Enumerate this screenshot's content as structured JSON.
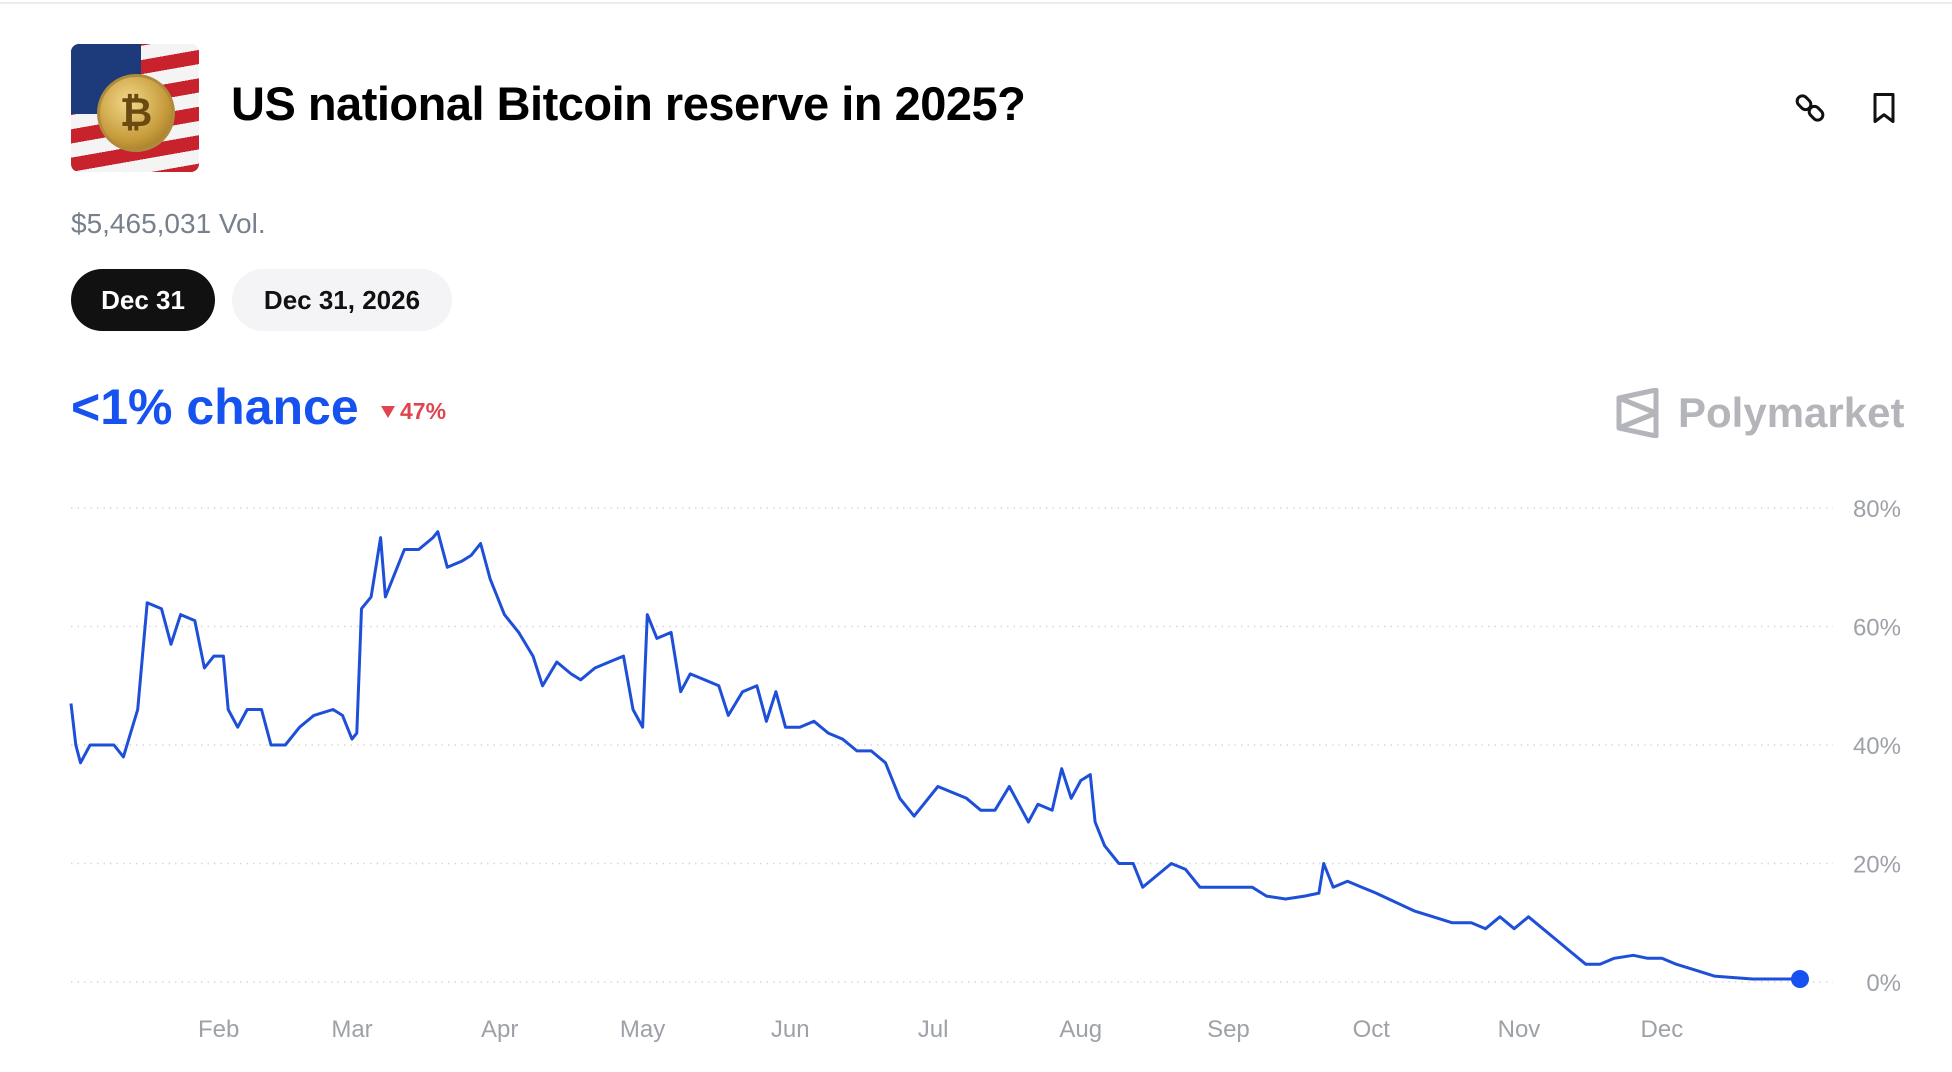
{
  "market": {
    "title": "US national Bitcoin reserve in 2025?",
    "volume": "$5,465,031 Vol.",
    "thumbnail_symbol": "₿",
    "date_tabs": [
      {
        "label": "Dec 31",
        "active": true
      },
      {
        "label": "Dec 31, 2026",
        "active": false
      }
    ],
    "chance": "<1% chance",
    "change": "47%",
    "change_direction": "down",
    "brand": "Polymarket",
    "icons": [
      "link-icon",
      "bookmark-icon"
    ]
  },
  "colors": {
    "accent": "#1652f0",
    "line": "#1d4fd8",
    "down": "#e0454f",
    "muted": "#9ea1a8"
  },
  "chart_data": {
    "type": "line",
    "ylim": [
      0,
      80
    ],
    "y_ticks": [
      "0%",
      "20%",
      "40%",
      "60%",
      "80%"
    ],
    "y_tick_values": [
      0,
      20,
      40,
      60,
      80
    ],
    "x_ticks": [
      "Feb",
      "Mar",
      "Apr",
      "May",
      "Jun",
      "Jul",
      "Aug",
      "Sep",
      "Oct",
      "Nov",
      "Dec"
    ],
    "x_tick_dates": [
      "2025-02-01",
      "2025-03-01",
      "2025-04-01",
      "2025-05-01",
      "2025-06-01",
      "2025-07-01",
      "2025-08-01",
      "2025-09-01",
      "2025-10-01",
      "2025-11-01",
      "2025-12-01"
    ],
    "grid": "horizontal dotted",
    "y_axis_side": "right",
    "series": [
      {
        "points": [
          [
            "2025-01-01",
            47
          ],
          [
            "2025-01-02",
            40
          ],
          [
            "2025-01-03",
            37
          ],
          [
            "2025-01-05",
            40
          ],
          [
            "2025-01-10",
            40
          ],
          [
            "2025-01-12",
            38
          ],
          [
            "2025-01-15",
            46
          ],
          [
            "2025-01-17",
            64
          ],
          [
            "2025-01-20",
            63
          ],
          [
            "2025-01-22",
            57
          ],
          [
            "2025-01-24",
            62
          ],
          [
            "2025-01-27",
            61
          ],
          [
            "2025-01-29",
            53
          ],
          [
            "2025-01-31",
            55
          ],
          [
            "2025-02-02",
            55
          ],
          [
            "2025-02-03",
            46
          ],
          [
            "2025-02-05",
            43
          ],
          [
            "2025-02-07",
            46
          ],
          [
            "2025-02-10",
            46
          ],
          [
            "2025-02-12",
            40
          ],
          [
            "2025-02-15",
            40
          ],
          [
            "2025-02-18",
            43
          ],
          [
            "2025-02-21",
            45
          ],
          [
            "2025-02-25",
            46
          ],
          [
            "2025-02-27",
            45
          ],
          [
            "2025-03-01",
            41
          ],
          [
            "2025-03-02",
            42
          ],
          [
            "2025-03-03",
            63
          ],
          [
            "2025-03-05",
            65
          ],
          [
            "2025-03-07",
            75
          ],
          [
            "2025-03-08",
            65
          ],
          [
            "2025-03-10",
            69
          ],
          [
            "2025-03-12",
            73
          ],
          [
            "2025-03-15",
            73
          ],
          [
            "2025-03-18",
            75
          ],
          [
            "2025-03-19",
            76
          ],
          [
            "2025-03-21",
            70
          ],
          [
            "2025-03-24",
            71
          ],
          [
            "2025-03-26",
            72
          ],
          [
            "2025-03-28",
            74
          ],
          [
            "2025-03-30",
            68
          ],
          [
            "2025-04-02",
            62
          ],
          [
            "2025-04-05",
            59
          ],
          [
            "2025-04-08",
            55
          ],
          [
            "2025-04-10",
            50
          ],
          [
            "2025-04-13",
            54
          ],
          [
            "2025-04-16",
            52
          ],
          [
            "2025-04-18",
            51
          ],
          [
            "2025-04-21",
            53
          ],
          [
            "2025-04-24",
            54
          ],
          [
            "2025-04-27",
            55
          ],
          [
            "2025-04-29",
            46
          ],
          [
            "2025-05-01",
            43
          ],
          [
            "2025-05-02",
            62
          ],
          [
            "2025-05-04",
            58
          ],
          [
            "2025-05-07",
            59
          ],
          [
            "2025-05-09",
            49
          ],
          [
            "2025-05-11",
            52
          ],
          [
            "2025-05-14",
            51
          ],
          [
            "2025-05-17",
            50
          ],
          [
            "2025-05-19",
            45
          ],
          [
            "2025-05-22",
            49
          ],
          [
            "2025-05-25",
            50
          ],
          [
            "2025-05-27",
            44
          ],
          [
            "2025-05-29",
            49
          ],
          [
            "2025-05-31",
            43
          ],
          [
            "2025-06-03",
            43
          ],
          [
            "2025-06-06",
            44
          ],
          [
            "2025-06-09",
            42
          ],
          [
            "2025-06-12",
            41
          ],
          [
            "2025-06-15",
            39
          ],
          [
            "2025-06-18",
            39
          ],
          [
            "2025-06-21",
            37
          ],
          [
            "2025-06-24",
            31
          ],
          [
            "2025-06-27",
            28
          ],
          [
            "2025-06-29",
            30
          ],
          [
            "2025-07-02",
            33
          ],
          [
            "2025-07-05",
            32
          ],
          [
            "2025-07-08",
            31
          ],
          [
            "2025-07-11",
            29
          ],
          [
            "2025-07-14",
            29
          ],
          [
            "2025-07-17",
            33
          ],
          [
            "2025-07-19",
            30
          ],
          [
            "2025-07-21",
            27
          ],
          [
            "2025-07-23",
            30
          ],
          [
            "2025-07-26",
            29
          ],
          [
            "2025-07-28",
            36
          ],
          [
            "2025-07-30",
            31
          ],
          [
            "2025-08-01",
            34
          ],
          [
            "2025-08-03",
            35
          ],
          [
            "2025-08-04",
            27
          ],
          [
            "2025-08-06",
            23
          ],
          [
            "2025-08-09",
            20
          ],
          [
            "2025-08-12",
            20
          ],
          [
            "2025-08-14",
            16
          ],
          [
            "2025-08-17",
            18
          ],
          [
            "2025-08-20",
            20
          ],
          [
            "2025-08-23",
            19
          ],
          [
            "2025-08-26",
            16
          ],
          [
            "2025-08-30",
            16
          ],
          [
            "2025-09-03",
            16
          ],
          [
            "2025-09-06",
            16
          ],
          [
            "2025-09-09",
            14.5
          ],
          [
            "2025-09-13",
            14
          ],
          [
            "2025-09-17",
            14.5
          ],
          [
            "2025-09-20",
            15
          ],
          [
            "2025-09-21",
            20
          ],
          [
            "2025-09-23",
            16
          ],
          [
            "2025-09-26",
            17
          ],
          [
            "2025-09-29",
            16
          ],
          [
            "2025-10-02",
            15
          ],
          [
            "2025-10-06",
            13.5
          ],
          [
            "2025-10-10",
            12
          ],
          [
            "2025-10-14",
            11
          ],
          [
            "2025-10-18",
            10
          ],
          [
            "2025-10-22",
            10
          ],
          [
            "2025-10-25",
            9
          ],
          [
            "2025-10-28",
            11
          ],
          [
            "2025-10-31",
            9
          ],
          [
            "2025-11-03",
            11
          ],
          [
            "2025-11-06",
            9
          ],
          [
            "2025-11-09",
            7
          ],
          [
            "2025-11-12",
            5
          ],
          [
            "2025-11-15",
            3
          ],
          [
            "2025-11-18",
            3
          ],
          [
            "2025-11-21",
            4
          ],
          [
            "2025-11-25",
            4.5
          ],
          [
            "2025-11-28",
            4
          ],
          [
            "2025-12-01",
            4
          ],
          [
            "2025-12-04",
            3
          ],
          [
            "2025-12-08",
            2
          ],
          [
            "2025-12-12",
            1
          ],
          [
            "2025-12-20",
            0.5
          ],
          [
            "2025-12-30",
            0.5
          ]
        ]
      }
    ]
  }
}
